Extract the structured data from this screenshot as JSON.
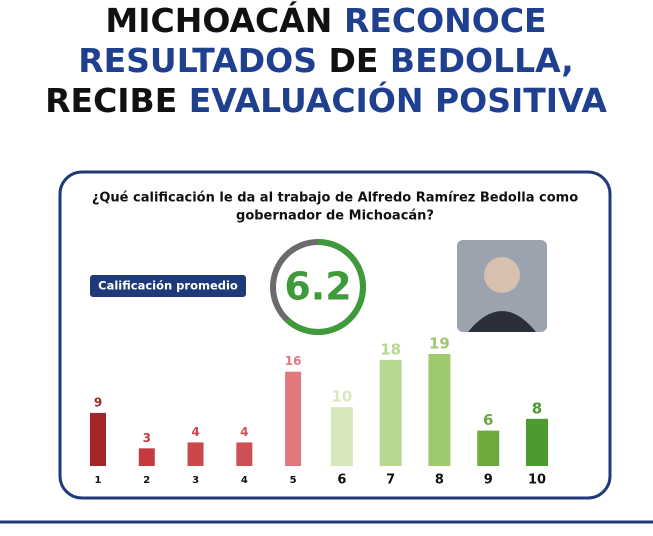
{
  "title_lines": [
    [
      {
        "text": "MICHOACÁN",
        "color": "#111111"
      },
      {
        "text": "RECONOCE",
        "color": "#1f3f8f"
      }
    ],
    [
      {
        "text": "RESULTADOS",
        "color": "#1f3f8f"
      },
      {
        "text": "DE",
        "color": "#111111"
      },
      {
        "text": "BEDOLLA,",
        "color": "#1f3f8f"
      }
    ],
    [
      {
        "text": "RECIBE",
        "color": "#111111"
      },
      {
        "text": "EVALUACIÓN POSITIVA",
        "color": "#1f3f8f"
      }
    ]
  ],
  "question": [
    "¿Qué calificación le da al trabajo de Alfredo Ramírez Bedolla como",
    "gobernador de Michoacán?"
  ],
  "average_label": "Calificación promedio",
  "average_value": 6.2,
  "chart_data": {
    "type": "bar",
    "categories": [
      "1",
      "2",
      "3",
      "4",
      "5",
      "6",
      "7",
      "8",
      "9",
      "10"
    ],
    "values": [
      9,
      3,
      4,
      4,
      16,
      10,
      18,
      19,
      6,
      8
    ],
    "colors": [
      "#a3262b",
      "#c43a3f",
      "#c8484c",
      "#cc5055",
      "#e0787e",
      "#d8e8bd",
      "#b8d891",
      "#9ec96c",
      "#6dab3f",
      "#4d9a30"
    ]
  }
}
